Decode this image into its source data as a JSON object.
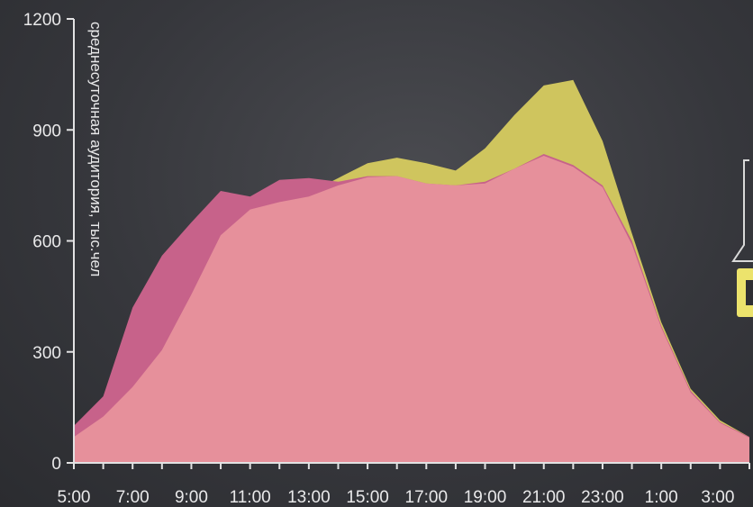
{
  "chart_data": {
    "type": "area",
    "ylabel": "среднесуточная аудитория, тыс.чел",
    "xlabel": "",
    "ylim": [
      0,
      1200
    ],
    "yticks": [
      0,
      300,
      600,
      900,
      1200
    ],
    "x": [
      "5:00",
      "6:00",
      "7:00",
      "8:00",
      "9:00",
      "10:00",
      "11:00",
      "12:00",
      "13:00",
      "14:00",
      "15:00",
      "16:00",
      "17:00",
      "18:00",
      "19:00",
      "20:00",
      "21:00",
      "22:00",
      "23:00",
      "0:00",
      "1:00",
      "2:00",
      "3:00",
      "4:00"
    ],
    "xtick_labels": [
      "5:00",
      "7:00",
      "9:00",
      "11:00",
      "13:00",
      "15:00",
      "17:00",
      "19:00",
      "21:00",
      "23:00",
      "1:00",
      "3:00"
    ],
    "series": [
      {
        "color": "#cfc55e",
        "values": [
          70,
          130,
          210,
          310,
          460,
          620,
          690,
          710,
          730,
          770,
          810,
          825,
          810,
          790,
          850,
          940,
          1020,
          1035,
          870,
          620,
          380,
          200,
          115,
          70
        ]
      },
      {
        "color": "#c7628a",
        "values": [
          100,
          180,
          420,
          560,
          650,
          735,
          720,
          765,
          770,
          760,
          775,
          775,
          755,
          750,
          760,
          795,
          835,
          805,
          750,
          600,
          370,
          195,
          110,
          70
        ]
      },
      {
        "color": "#e6909b",
        "values": [
          70,
          125,
          205,
          305,
          455,
          615,
          685,
          705,
          720,
          750,
          772,
          775,
          755,
          750,
          755,
          795,
          830,
          800,
          745,
          590,
          365,
          190,
          108,
          68
        ]
      }
    ],
    "grid": false,
    "legend": "none"
  }
}
